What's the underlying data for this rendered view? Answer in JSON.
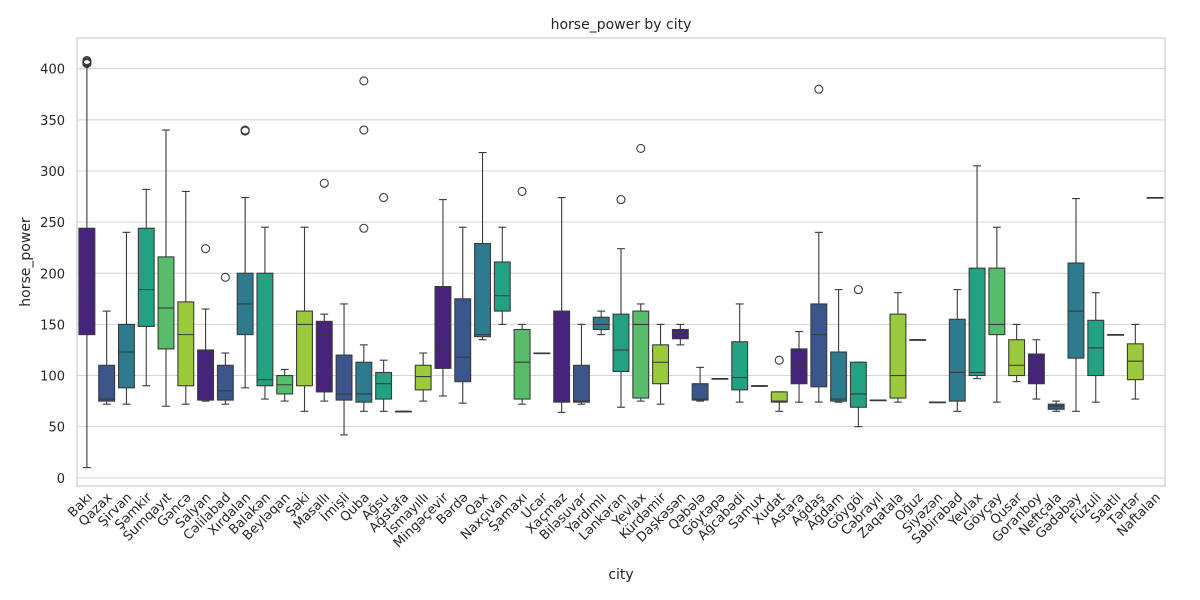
{
  "chart_data": {
    "type": "box",
    "title": "horse_power by city",
    "xlabel": "city",
    "ylabel": "horse_power",
    "ylim": [
      -8,
      430
    ],
    "yticks": [
      0,
      50,
      100,
      150,
      200,
      250,
      300,
      350,
      400
    ],
    "grid": "horizontal",
    "palette": [
      "#45247a",
      "#3b568a",
      "#2d7b8c",
      "#22a283",
      "#58bd6a",
      "#9bcb3c"
    ],
    "categories": [
      {
        "name": "Bakı",
        "min": 10,
        "q1": 140,
        "median": 184,
        "q3": 244,
        "max": 404,
        "fliers": [
          405,
          406,
          407,
          408
        ]
      },
      {
        "name": "Qazax",
        "min": 72,
        "q1": 75,
        "median": 77,
        "q3": 110,
        "max": 163,
        "fliers": []
      },
      {
        "name": "Şirvan",
        "min": 72,
        "q1": 88,
        "median": 123,
        "q3": 150,
        "max": 240,
        "fliers": []
      },
      {
        "name": "Şəmkir",
        "min": 90,
        "q1": 148,
        "median": 184,
        "q3": 244,
        "max": 282,
        "fliers": []
      },
      {
        "name": "Sumqayıt",
        "min": 70,
        "q1": 126,
        "median": 166,
        "q3": 216,
        "max": 340,
        "fliers": []
      },
      {
        "name": "Gəncə",
        "min": 72,
        "q1": 90,
        "median": 140,
        "q3": 172,
        "max": 280,
        "fliers": []
      },
      {
        "name": "Salyan",
        "min": 75,
        "q1": 76,
        "median": 108,
        "q3": 125,
        "max": 165,
        "fliers": [
          224
        ]
      },
      {
        "name": "Cəlilabad",
        "min": 72,
        "q1": 76,
        "median": 85,
        "q3": 110,
        "max": 122,
        "fliers": [
          196
        ]
      },
      {
        "name": "Xırdalan",
        "min": 88,
        "q1": 140,
        "median": 170,
        "q3": 200,
        "max": 274,
        "fliers": [
          339,
          340
        ]
      },
      {
        "name": "Balakən",
        "min": 77,
        "q1": 90,
        "median": 96,
        "q3": 200,
        "max": 245,
        "fliers": []
      },
      {
        "name": "Beyləqan",
        "min": 75,
        "q1": 82,
        "median": 91,
        "q3": 100,
        "max": 106,
        "fliers": []
      },
      {
        "name": "Şəki",
        "min": 65,
        "q1": 90,
        "median": 150,
        "q3": 163,
        "max": 245,
        "fliers": []
      },
      {
        "name": "Masallı",
        "min": 75,
        "q1": 84,
        "median": 140,
        "q3": 153,
        "max": 160,
        "fliers": [
          288
        ]
      },
      {
        "name": "İmişli",
        "min": 42,
        "q1": 76,
        "median": 82,
        "q3": 120,
        "max": 170,
        "fliers": []
      },
      {
        "name": "Quba",
        "min": 65,
        "q1": 74,
        "median": 82,
        "q3": 113,
        "max": 130,
        "fliers": [
          244,
          340,
          388
        ]
      },
      {
        "name": "Ağsu",
        "min": 65,
        "q1": 77,
        "median": 92,
        "q3": 103,
        "max": 115,
        "fliers": [
          274
        ]
      },
      {
        "name": "Ağstafa",
        "min": 65,
        "q1": 65,
        "median": 65,
        "q3": 65,
        "max": 65,
        "fliers": []
      },
      {
        "name": "İsmayıllı",
        "min": 75,
        "q1": 86,
        "median": 99,
        "q3": 110,
        "max": 122,
        "fliers": []
      },
      {
        "name": "Mingəçevir",
        "min": 80,
        "q1": 107,
        "median": 128,
        "q3": 187,
        "max": 272,
        "fliers": []
      },
      {
        "name": "Bərdə",
        "min": 73,
        "q1": 94,
        "median": 118,
        "q3": 175,
        "max": 245,
        "fliers": []
      },
      {
        "name": "Qax",
        "min": 135,
        "q1": 138,
        "median": 140,
        "q3": 229,
        "max": 318,
        "fliers": []
      },
      {
        "name": "Naxçıvan",
        "min": 150,
        "q1": 163,
        "median": 178,
        "q3": 211,
        "max": 245,
        "fliers": []
      },
      {
        "name": "Şamaxı",
        "min": 72,
        "q1": 77,
        "median": 113,
        "q3": 145,
        "max": 150,
        "fliers": [
          280
        ]
      },
      {
        "name": "Ucar",
        "min": 122,
        "q1": 122,
        "median": 122,
        "q3": 122,
        "max": 122,
        "fliers": []
      },
      {
        "name": "Xaçmaz",
        "min": 64,
        "q1": 74,
        "median": 102,
        "q3": 163,
        "max": 274,
        "fliers": []
      },
      {
        "name": "Biləsuvar",
        "min": 72,
        "q1": 74,
        "median": 75,
        "q3": 110,
        "max": 150,
        "fliers": []
      },
      {
        "name": "Yardımlı",
        "min": 140,
        "q1": 145,
        "median": 150,
        "q3": 157,
        "max": 163,
        "fliers": []
      },
      {
        "name": "Lənkəran",
        "min": 69,
        "q1": 104,
        "median": 125,
        "q3": 160,
        "max": 224,
        "fliers": [
          272
        ]
      },
      {
        "name": "Yevlax",
        "min": 75,
        "q1": 78,
        "median": 150,
        "q3": 163,
        "max": 170,
        "fliers": [
          322
        ]
      },
      {
        "name": "Kürdəmir",
        "min": 72,
        "q1": 92,
        "median": 113,
        "q3": 130,
        "max": 150,
        "fliers": []
      },
      {
        "name": "Daşkəsən",
        "min": 130,
        "q1": 136,
        "median": 142,
        "q3": 145,
        "max": 150,
        "fliers": []
      },
      {
        "name": "Qəbələ",
        "min": 75,
        "q1": 76,
        "median": 77,
        "q3": 92,
        "max": 108,
        "fliers": []
      },
      {
        "name": "Göytəpə",
        "min": 97,
        "q1": 97,
        "median": 97,
        "q3": 97,
        "max": 97,
        "fliers": []
      },
      {
        "name": "Ağcabədi",
        "min": 74,
        "q1": 86,
        "median": 98,
        "q3": 133,
        "max": 170,
        "fliers": []
      },
      {
        "name": "Samux",
        "min": 90,
        "q1": 90,
        "median": 90,
        "q3": 90,
        "max": 90,
        "fliers": []
      },
      {
        "name": "Xudat",
        "min": 65,
        "q1": 74,
        "median": 75,
        "q3": 84,
        "max": 84,
        "fliers": [
          115
        ]
      },
      {
        "name": "Astara",
        "min": 74,
        "q1": 92,
        "median": 110,
        "q3": 126,
        "max": 143,
        "fliers": []
      },
      {
        "name": "Ağdaş",
        "min": 74,
        "q1": 89,
        "median": 140,
        "q3": 170,
        "max": 240,
        "fliers": [
          380
        ]
      },
      {
        "name": "Ağdam",
        "min": 74,
        "q1": 75,
        "median": 77,
        "q3": 123,
        "max": 184,
        "fliers": []
      },
      {
        "name": "Göygöl",
        "min": 50,
        "q1": 69,
        "median": 82,
        "q3": 113,
        "max": 113,
        "fliers": [
          184
        ]
      },
      {
        "name": "Cəbrayıl",
        "min": 76,
        "q1": 76,
        "median": 76,
        "q3": 76,
        "max": 76,
        "fliers": []
      },
      {
        "name": "Zaqatala",
        "min": 74,
        "q1": 78,
        "median": 100,
        "q3": 160,
        "max": 181,
        "fliers": []
      },
      {
        "name": "Oğuz",
        "min": 135,
        "q1": 135,
        "median": 135,
        "q3": 135,
        "max": 135,
        "fliers": []
      },
      {
        "name": "Siyəzən",
        "min": 74,
        "q1": 74,
        "median": 74,
        "q3": 74,
        "max": 74,
        "fliers": []
      },
      {
        "name": "Sabirabad",
        "min": 65,
        "q1": 75,
        "median": 103,
        "q3": 155,
        "max": 184,
        "fliers": []
      },
      {
        "name": "Yevlax",
        "min": 97,
        "q1": 100,
        "median": 103,
        "q3": 205,
        "max": 305,
        "fliers": []
      },
      {
        "name": "Göyçay",
        "min": 74,
        "q1": 140,
        "median": 150,
        "q3": 205,
        "max": 245,
        "fliers": []
      },
      {
        "name": "Qusar",
        "min": 94,
        "q1": 100,
        "median": 110,
        "q3": 135,
        "max": 150,
        "fliers": []
      },
      {
        "name": "Goranboy",
        "min": 77,
        "q1": 92,
        "median": 108,
        "q3": 121,
        "max": 135,
        "fliers": []
      },
      {
        "name": "Neftçala",
        "min": 65,
        "q1": 67,
        "median": 70,
        "q3": 72,
        "max": 75,
        "fliers": []
      },
      {
        "name": "Gədəbəy",
        "min": 65,
        "q1": 117,
        "median": 163,
        "q3": 210,
        "max": 273,
        "fliers": []
      },
      {
        "name": "Füzuli",
        "min": 74,
        "q1": 100,
        "median": 127,
        "q3": 154,
        "max": 181,
        "fliers": []
      },
      {
        "name": "Saatlı",
        "min": 140,
        "q1": 140,
        "median": 140,
        "q3": 140,
        "max": 140,
        "fliers": []
      },
      {
        "name": "Tərtər",
        "min": 77,
        "q1": 96,
        "median": 114,
        "q3": 131,
        "max": 150,
        "fliers": []
      },
      {
        "name": "Naftalan",
        "min": 274,
        "q1": 274,
        "median": 274,
        "q3": 274,
        "max": 274,
        "fliers": []
      }
    ]
  }
}
